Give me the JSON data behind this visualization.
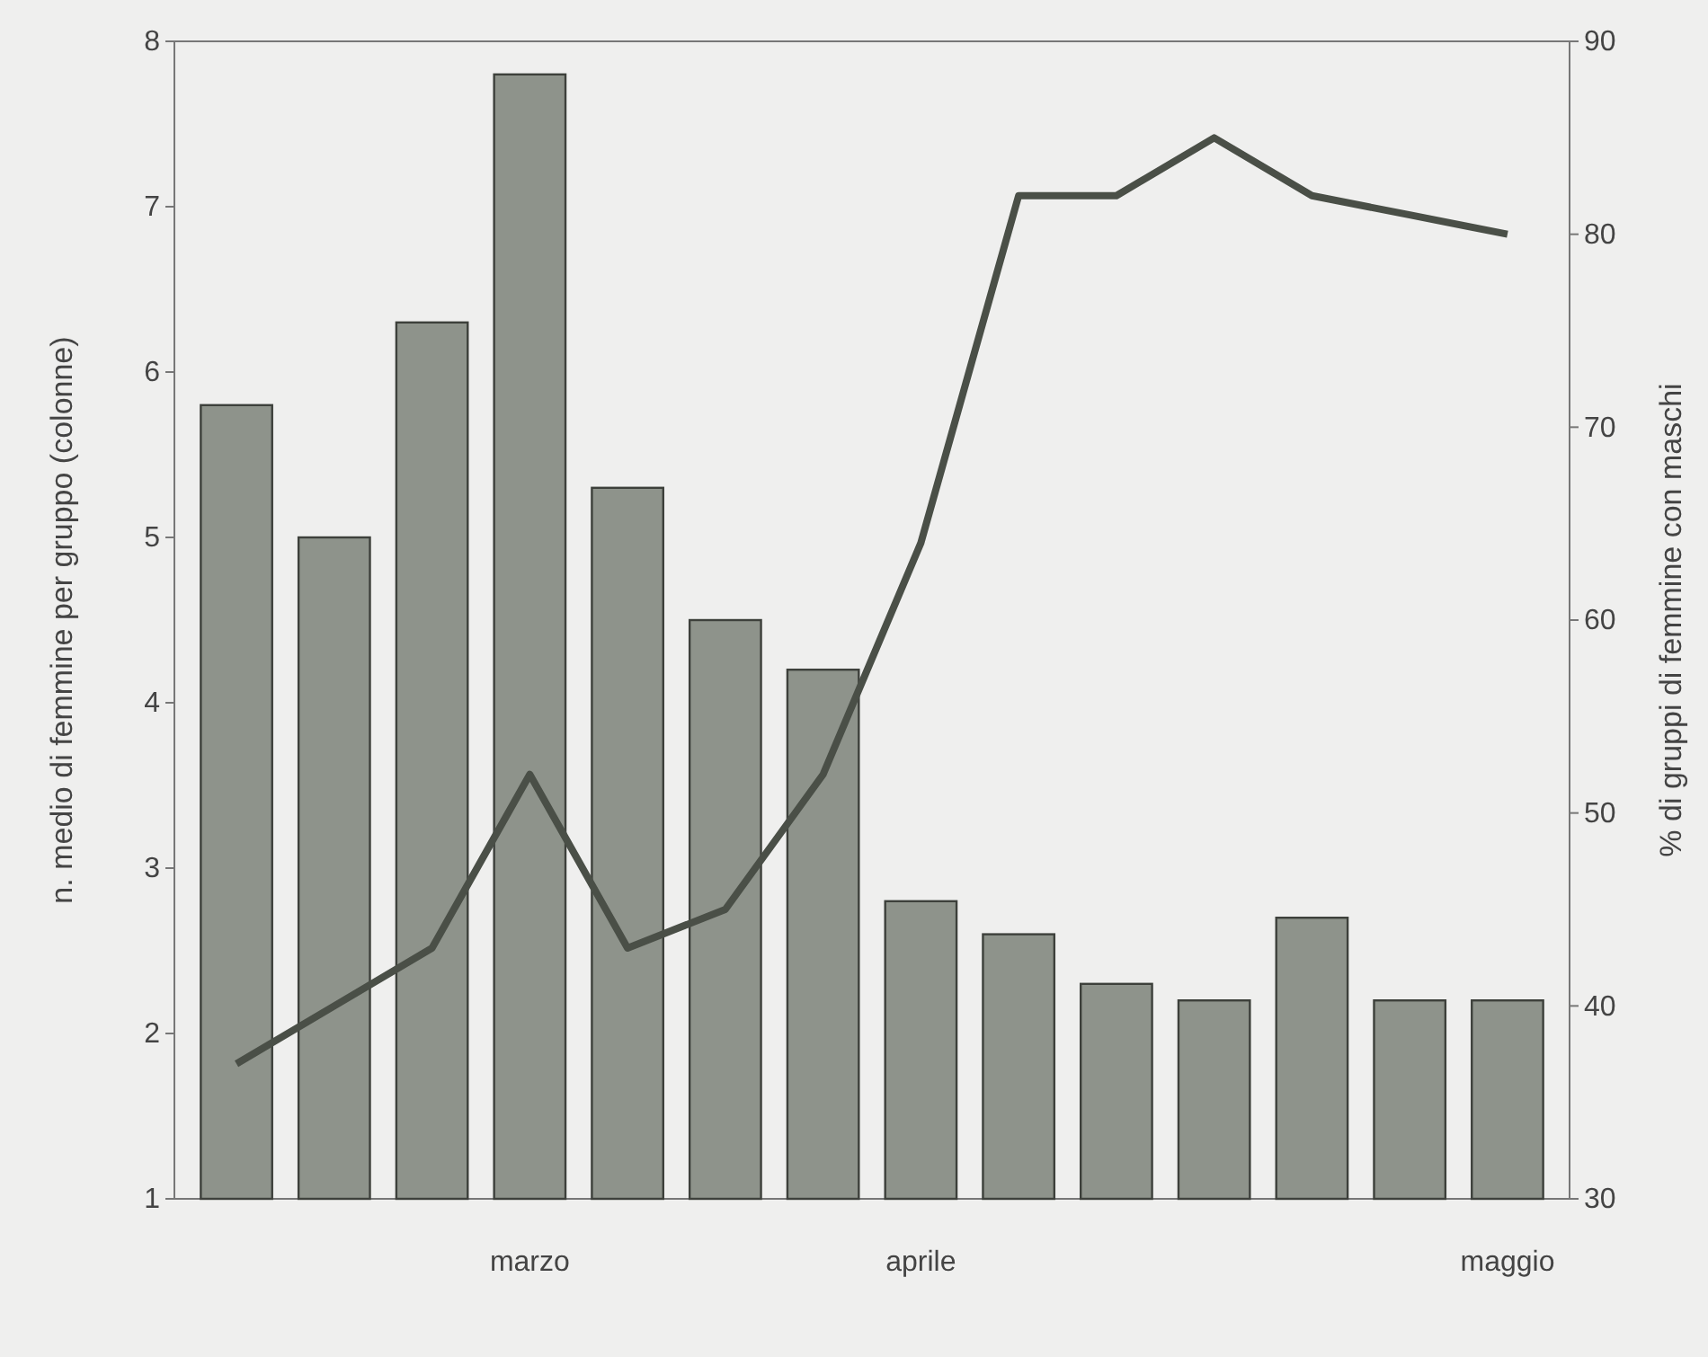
{
  "chart_data": {
    "type": "bar",
    "categories": [
      null,
      null,
      null,
      "marzo",
      null,
      null,
      null,
      "aprile",
      null,
      null,
      null,
      null,
      null,
      "maggio"
    ],
    "ylabel": "n. medio di femmine per gruppo (colonne)",
    "y2label": "% di gruppi di femmine con maschi",
    "ylim": [
      1,
      8
    ],
    "yticks": [
      1,
      2,
      3,
      4,
      5,
      6,
      7,
      8
    ],
    "y2lim": [
      30,
      90
    ],
    "y2ticks": [
      30,
      40,
      50,
      60,
      70,
      80,
      90
    ],
    "series": [
      {
        "color": "#8e938b",
        "values": [
          5.8,
          5.0,
          6.3,
          7.8,
          5.3,
          4.5,
          4.2,
          2.8,
          2.6,
          2.3,
          2.2,
          2.7,
          2.2,
          2.2
        ]
      },
      {
        "type": "line",
        "axis": "y2",
        "color": "#4a4f47",
        "values": [
          37,
          40,
          43,
          52,
          43,
          45,
          52,
          64,
          82,
          82,
          85,
          82,
          81,
          80
        ]
      }
    ],
    "grid": false
  }
}
